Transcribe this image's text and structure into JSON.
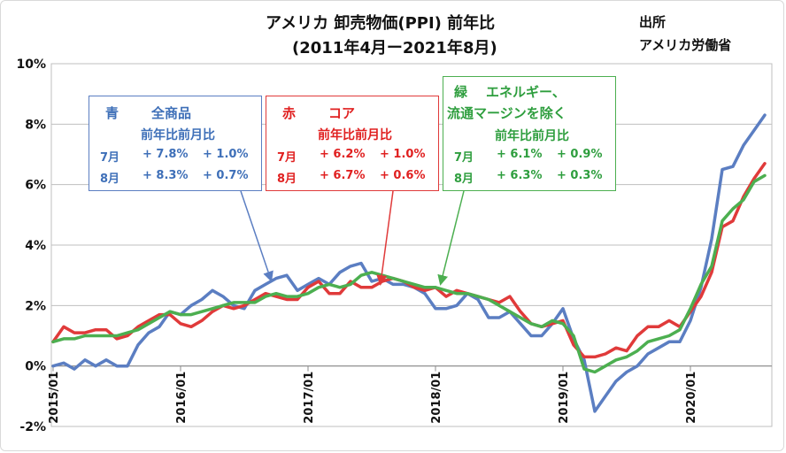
{
  "chart_data": {
    "type": "line",
    "title": "アメリカ 卸売物価(PPI) 前年比",
    "subtitle": "(2011年4月ー2021年8月)",
    "source_label": "出所",
    "source": "アメリカ労働省",
    "ylim": [
      -2,
      10
    ],
    "yticks": [
      "10%",
      "8%",
      "6%",
      "4%",
      "2%",
      "0%",
      "-2%"
    ],
    "ytick_values": [
      10,
      8,
      6,
      4,
      2,
      0,
      -2
    ],
    "xticks": [
      "2015/01",
      "2016/01",
      "2017/01",
      "2018/01",
      "2019/01",
      "2020/01"
    ],
    "xtick_index": [
      0,
      12,
      24,
      36,
      48,
      60
    ],
    "grid": "horizontal",
    "series": [
      {
        "name": "全商品",
        "color": "#5b7ec2",
        "values": [
          0.0,
          0.1,
          -0.1,
          0.2,
          0.0,
          0.2,
          0.0,
          0.0,
          0.7,
          1.1,
          1.3,
          1.8,
          1.7,
          2.0,
          2.2,
          2.5,
          2.3,
          2.0,
          1.9,
          2.5,
          2.7,
          2.9,
          3.0,
          2.5,
          2.7,
          2.9,
          2.7,
          3.1,
          3.3,
          3.4,
          2.8,
          2.9,
          2.7,
          2.7,
          2.6,
          2.4,
          1.9,
          1.9,
          2.0,
          2.4,
          2.2,
          1.6,
          1.6,
          1.8,
          1.4,
          1.0,
          1.0,
          1.4,
          1.9,
          0.9,
          0.2,
          -1.5,
          -1.0,
          -0.5,
          -0.2,
          0.0,
          0.4,
          0.6,
          0.8,
          0.8,
          1.5,
          2.6,
          4.2,
          6.5,
          6.6,
          7.3,
          7.8,
          8.3
        ]
      },
      {
        "name": "コア",
        "color": "#e03a3a",
        "values": [
          0.8,
          1.3,
          1.1,
          1.1,
          1.2,
          1.2,
          0.9,
          1.0,
          1.3,
          1.5,
          1.7,
          1.7,
          1.4,
          1.3,
          1.5,
          1.8,
          2.0,
          1.9,
          2.0,
          2.2,
          2.4,
          2.3,
          2.2,
          2.2,
          2.6,
          2.8,
          2.4,
          2.4,
          2.8,
          2.6,
          2.6,
          2.8,
          2.9,
          2.8,
          2.6,
          2.5,
          2.6,
          2.3,
          2.5,
          2.4,
          2.3,
          2.2,
          2.1,
          2.3,
          1.8,
          1.4,
          1.3,
          1.4,
          1.5,
          0.7,
          0.3,
          0.3,
          0.4,
          0.6,
          0.5,
          1.0,
          1.3,
          1.3,
          1.5,
          1.3,
          1.8,
          2.3,
          3.1,
          4.6,
          4.8,
          5.6,
          6.2,
          6.7
        ]
      },
      {
        "name": "エネルギー、流通マージンを除く",
        "color": "#4caf50",
        "values": [
          0.8,
          0.9,
          0.9,
          1.0,
          1.0,
          1.0,
          1.0,
          1.1,
          1.2,
          1.4,
          1.6,
          1.8,
          1.7,
          1.7,
          1.8,
          1.9,
          2.0,
          2.1,
          2.1,
          2.1,
          2.3,
          2.4,
          2.3,
          2.3,
          2.4,
          2.6,
          2.7,
          2.6,
          2.7,
          3.0,
          3.1,
          3.0,
          2.9,
          2.8,
          2.7,
          2.6,
          2.6,
          2.5,
          2.4,
          2.4,
          2.3,
          2.2,
          2.0,
          1.8,
          1.6,
          1.4,
          1.3,
          1.5,
          1.4,
          1.0,
          -0.1,
          -0.2,
          0.0,
          0.2,
          0.3,
          0.5,
          0.8,
          0.9,
          1.0,
          1.2,
          1.9,
          2.7,
          3.3,
          4.8,
          5.2,
          5.5,
          6.1,
          6.3
        ]
      }
    ]
  },
  "legend_boxes": [
    {
      "color_word": "青",
      "name": "全商品",
      "header": "前年比前月比",
      "rows": [
        {
          "month": "7月",
          "yoy": "+ 7.8%",
          "mom": "+ 1.0%"
        },
        {
          "month": "8月",
          "yoy": "+ 8.3%",
          "mom": "+ 0.7%"
        }
      ],
      "border": "#5b7ec2",
      "text_color": "#3e6fb8"
    },
    {
      "color_word": "赤",
      "name": "コア",
      "header": "前年比前月比",
      "rows": [
        {
          "month": "7月",
          "yoy": "+ 6.2%",
          "mom": "+ 1.0%"
        },
        {
          "month": "8月",
          "yoy": "+ 6.7%",
          "mom": "+ 0.6%"
        }
      ],
      "border": "#e03a3a",
      "text_color": "#e02020"
    },
    {
      "color_word": "緑",
      "name_line1": "エネルギー、",
      "name_line2": "流通マージンを除く",
      "header": "前年比前月比",
      "rows": [
        {
          "month": "7月",
          "yoy": "+ 6.1%",
          "mom": "+ 0.9%"
        },
        {
          "month": "8月",
          "yoy": "+ 6.3%",
          "mom": "+ 0.3%"
        }
      ],
      "border": "#4caf50",
      "text_color": "#2e9e3e"
    }
  ]
}
